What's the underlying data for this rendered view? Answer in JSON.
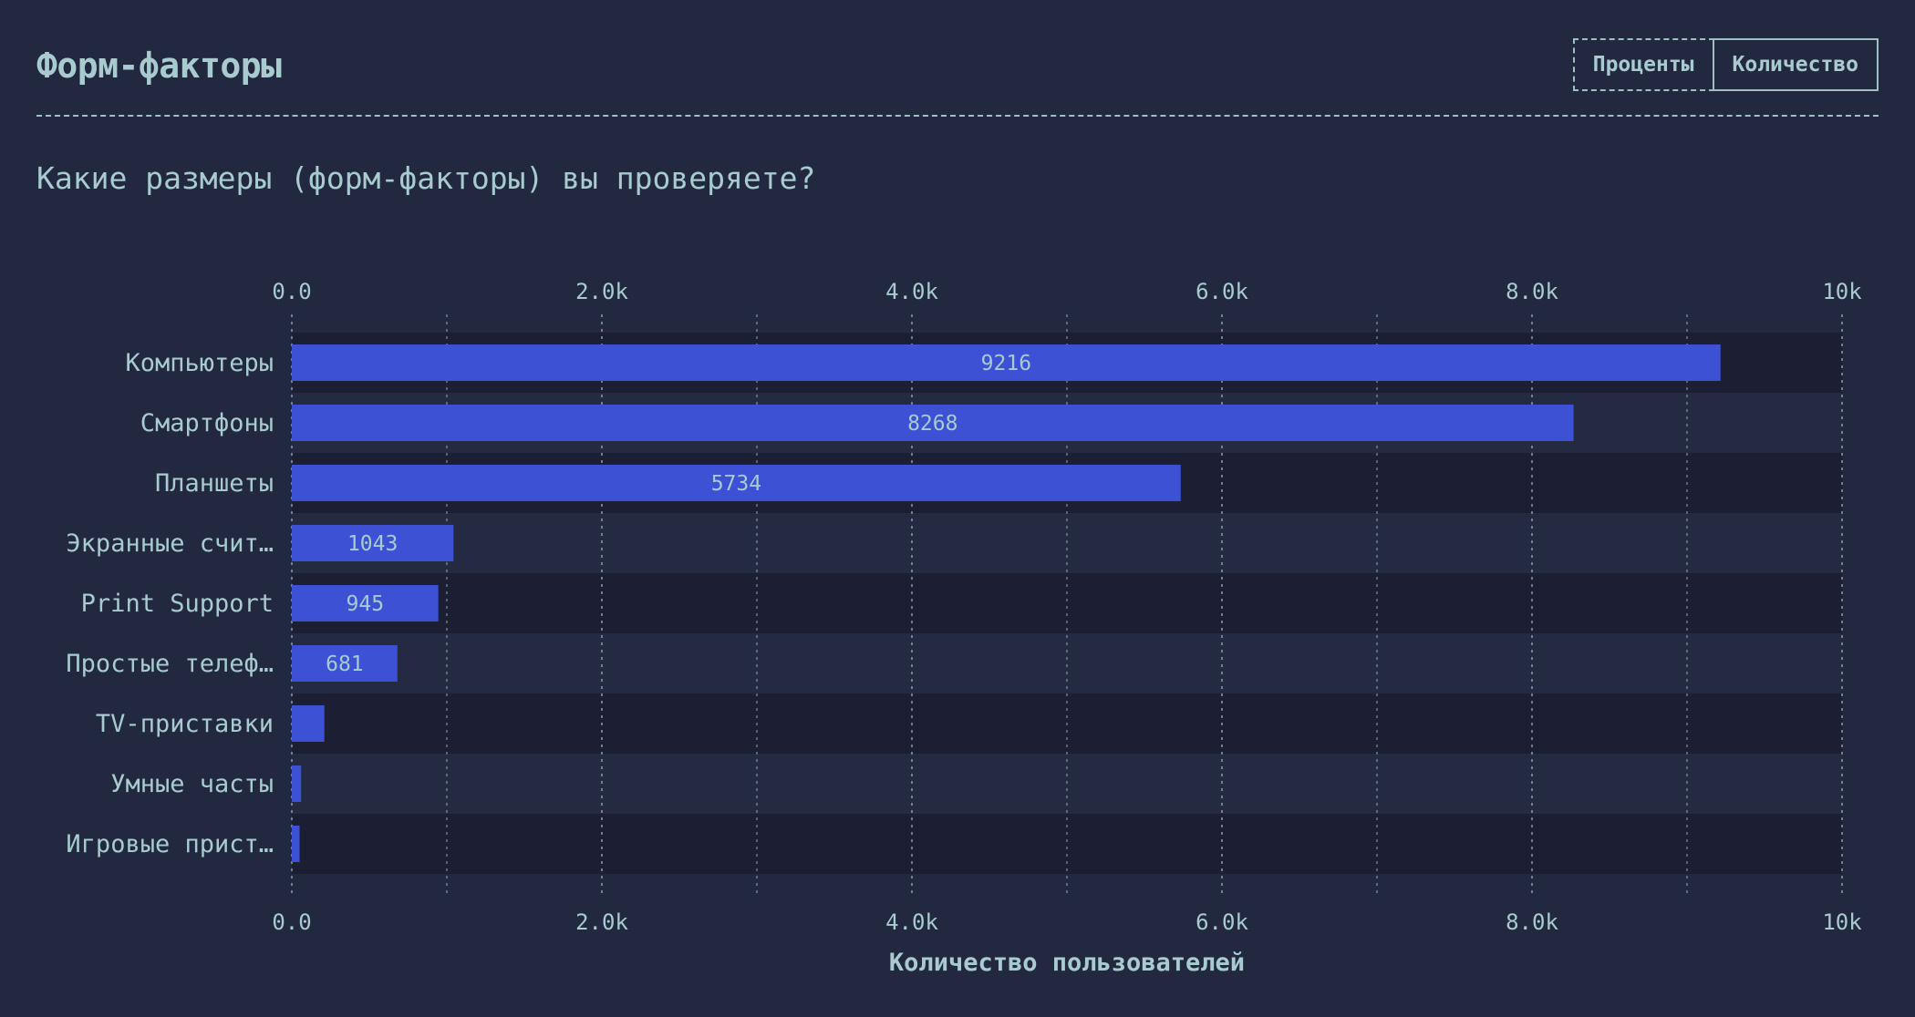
{
  "header": {
    "title": "Форм-факторы",
    "toggle": {
      "percent_label": "Проценты",
      "count_label": "Количество",
      "active": "count"
    }
  },
  "question": "Какие размеры (форм-факторы) вы проверяете?",
  "colors": {
    "background": "#232841",
    "bar": "#3d51d4",
    "text": "#a7cbcf",
    "row_dark": "#1c1f34",
    "row_light": "#242a42"
  },
  "chart_data": {
    "type": "bar",
    "orientation": "horizontal",
    "categories": [
      "Компьютеры",
      "Смартфоны",
      "Планшеты",
      "Экранные счит…",
      "Print Support",
      "Простые телеф…",
      "TV-приставки",
      "Умные часты",
      "Игровые прист…"
    ],
    "values": [
      9216,
      8268,
      5734,
      1043,
      945,
      681,
      210,
      60,
      50
    ],
    "data_labels": [
      "9216",
      "8268",
      "5734",
      "1043",
      "945",
      "681",
      "",
      "",
      ""
    ],
    "xlim": [
      0,
      10000
    ],
    "ticks": [
      0,
      2000,
      4000,
      6000,
      8000,
      10000
    ],
    "tick_labels": [
      "0.0",
      "2.0k",
      "4.0k",
      "6.0k",
      "8.0k",
      "10k"
    ],
    "minor_ticks": [
      1000,
      3000,
      5000,
      7000,
      9000
    ],
    "xlabel": "Количество пользователей",
    "grid": true
  }
}
